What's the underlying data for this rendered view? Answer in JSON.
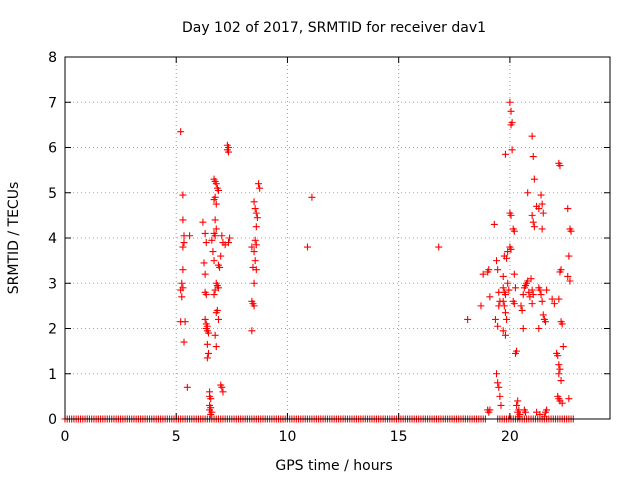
{
  "chart_data": {
    "type": "scatter",
    "title": "Day 102 of 2017, SRMTID for receiver dav1",
    "xlabel": "GPS time / hours",
    "ylabel": "SRMTID / TECUs",
    "xlim": [
      0,
      24.5
    ],
    "ylim": [
      0,
      8
    ],
    "xticks": [
      0,
      5,
      10,
      15,
      20
    ],
    "yticks": [
      0,
      1,
      2,
      3,
      4,
      5,
      6,
      7,
      8
    ],
    "grid": true,
    "marker": "plus",
    "color": "#ff0000",
    "series": [
      {
        "name": "SRMTID",
        "points": [
          [
            5.2,
            6.35
          ],
          [
            5.3,
            4.95
          ],
          [
            5.3,
            4.4
          ],
          [
            5.35,
            4.05
          ],
          [
            5.35,
            3.9
          ],
          [
            5.3,
            3.8
          ],
          [
            5.3,
            3.3
          ],
          [
            5.25,
            3.0
          ],
          [
            5.3,
            2.9
          ],
          [
            5.2,
            2.85
          ],
          [
            5.25,
            2.7
          ],
          [
            5.2,
            2.15
          ],
          [
            5.4,
            2.15
          ],
          [
            5.35,
            1.7
          ],
          [
            5.5,
            0.7
          ],
          [
            5.6,
            4.05
          ],
          [
            6.2,
            4.35
          ],
          [
            6.3,
            4.1
          ],
          [
            6.35,
            3.9
          ],
          [
            6.25,
            3.45
          ],
          [
            6.3,
            3.2
          ],
          [
            6.3,
            2.8
          ],
          [
            6.35,
            2.75
          ],
          [
            6.3,
            2.2
          ],
          [
            6.35,
            2.1
          ],
          [
            6.4,
            2.05
          ],
          [
            6.35,
            2.0
          ],
          [
            6.4,
            1.95
          ],
          [
            6.45,
            1.9
          ],
          [
            6.4,
            1.65
          ],
          [
            6.45,
            1.45
          ],
          [
            6.4,
            1.35
          ],
          [
            6.5,
            0.6
          ],
          [
            6.5,
            0.5
          ],
          [
            6.55,
            0.45
          ],
          [
            6.5,
            0.3
          ],
          [
            6.55,
            0.25
          ],
          [
            6.5,
            0.2
          ],
          [
            6.6,
            0.15
          ],
          [
            6.55,
            0.1
          ],
          [
            6.7,
            5.3
          ],
          [
            6.75,
            5.25
          ],
          [
            6.8,
            5.2
          ],
          [
            6.85,
            5.1
          ],
          [
            6.9,
            5.05
          ],
          [
            6.75,
            4.9
          ],
          [
            6.7,
            4.85
          ],
          [
            6.8,
            4.75
          ],
          [
            6.75,
            4.4
          ],
          [
            6.8,
            4.2
          ],
          [
            6.7,
            4.1
          ],
          [
            6.75,
            4.05
          ],
          [
            6.6,
            3.95
          ],
          [
            6.65,
            3.7
          ],
          [
            6.7,
            3.5
          ],
          [
            6.9,
            3.4
          ],
          [
            6.95,
            3.35
          ],
          [
            6.8,
            3.0
          ],
          [
            6.85,
            2.95
          ],
          [
            6.9,
            2.9
          ],
          [
            6.75,
            2.85
          ],
          [
            6.7,
            2.75
          ],
          [
            6.85,
            2.4
          ],
          [
            6.8,
            2.35
          ],
          [
            6.9,
            2.2
          ],
          [
            6.75,
            1.85
          ],
          [
            6.8,
            1.6
          ],
          [
            7.0,
            0.75
          ],
          [
            7.05,
            0.7
          ],
          [
            7.1,
            0.6
          ],
          [
            7.05,
            4.05
          ],
          [
            7.1,
            3.9
          ],
          [
            7.2,
            3.85
          ],
          [
            7.0,
            3.6
          ],
          [
            7.3,
            6.05
          ],
          [
            7.35,
            6.0
          ],
          [
            7.3,
            5.95
          ],
          [
            7.35,
            5.9
          ],
          [
            7.4,
            4.0
          ],
          [
            7.35,
            3.9
          ],
          [
            8.4,
            3.8
          ],
          [
            8.5,
            4.8
          ],
          [
            8.55,
            4.65
          ],
          [
            8.6,
            4.55
          ],
          [
            8.65,
            4.45
          ],
          [
            8.6,
            4.25
          ],
          [
            8.55,
            3.95
          ],
          [
            8.6,
            3.85
          ],
          [
            8.5,
            3.7
          ],
          [
            8.55,
            3.5
          ],
          [
            8.45,
            3.35
          ],
          [
            8.6,
            3.3
          ],
          [
            8.5,
            3.0
          ],
          [
            8.4,
            2.6
          ],
          [
            8.45,
            2.55
          ],
          [
            8.5,
            2.5
          ],
          [
            8.4,
            1.95
          ],
          [
            8.7,
            5.2
          ],
          [
            8.75,
            5.1
          ],
          [
            10.9,
            3.8
          ],
          [
            11.1,
            4.9
          ],
          [
            16.8,
            3.8
          ],
          [
            18.1,
            2.2
          ],
          [
            18.7,
            2.5
          ],
          [
            18.8,
            3.2
          ],
          [
            19.0,
            3.25
          ],
          [
            19.05,
            3.3
          ],
          [
            19.1,
            2.7
          ],
          [
            19.0,
            0.2
          ],
          [
            19.05,
            0.15
          ],
          [
            19.1,
            0.2
          ],
          [
            19.3,
            4.3
          ],
          [
            19.4,
            3.5
          ],
          [
            19.45,
            3.3
          ],
          [
            19.5,
            2.8
          ],
          [
            19.55,
            2.6
          ],
          [
            19.5,
            2.5
          ],
          [
            19.35,
            2.2
          ],
          [
            19.45,
            2.05
          ],
          [
            19.4,
            1.0
          ],
          [
            19.45,
            0.8
          ],
          [
            19.5,
            0.7
          ],
          [
            19.55,
            0.5
          ],
          [
            19.6,
            0.3
          ],
          [
            19.7,
            2.9
          ],
          [
            19.75,
            2.8
          ],
          [
            19.8,
            2.75
          ],
          [
            19.7,
            2.6
          ],
          [
            19.75,
            2.5
          ],
          [
            19.8,
            2.35
          ],
          [
            19.85,
            2.2
          ],
          [
            19.7,
            1.95
          ],
          [
            19.8,
            1.85
          ],
          [
            19.75,
            3.6
          ],
          [
            19.85,
            3.55
          ],
          [
            19.9,
            3.7
          ],
          [
            19.7,
            3.15
          ],
          [
            19.9,
            3.0
          ],
          [
            19.95,
            2.85
          ],
          [
            19.8,
            5.85
          ],
          [
            20.0,
            7.0
          ],
          [
            20.05,
            6.8
          ],
          [
            20.1,
            6.55
          ],
          [
            20.05,
            6.5
          ],
          [
            20.1,
            5.95
          ],
          [
            20.0,
            4.55
          ],
          [
            20.05,
            4.5
          ],
          [
            20.15,
            4.2
          ],
          [
            20.2,
            4.15
          ],
          [
            20.0,
            3.8
          ],
          [
            20.05,
            3.75
          ],
          [
            20.2,
            3.2
          ],
          [
            20.25,
            2.9
          ],
          [
            20.15,
            2.6
          ],
          [
            20.2,
            2.55
          ],
          [
            20.3,
            1.5
          ],
          [
            20.25,
            1.45
          ],
          [
            20.35,
            0.4
          ],
          [
            20.3,
            0.3
          ],
          [
            20.4,
            0.2
          ],
          [
            20.35,
            0.15
          ],
          [
            20.45,
            0.1
          ],
          [
            20.4,
            0.05
          ],
          [
            20.5,
            2.5
          ],
          [
            20.55,
            2.4
          ],
          [
            20.6,
            2.75
          ],
          [
            20.65,
            2.9
          ],
          [
            20.7,
            2.95
          ],
          [
            20.75,
            3.0
          ],
          [
            20.8,
            3.05
          ],
          [
            20.85,
            2.8
          ],
          [
            20.9,
            2.7
          ],
          [
            20.6,
            2.0
          ],
          [
            20.65,
            0.2
          ],
          [
            20.7,
            0.15
          ],
          [
            20.95,
            3.1
          ],
          [
            21.0,
            2.85
          ],
          [
            21.05,
            2.75
          ],
          [
            21.0,
            2.55
          ],
          [
            20.8,
            5.0
          ],
          [
            21.0,
            6.25
          ],
          [
            21.05,
            5.8
          ],
          [
            21.1,
            5.3
          ],
          [
            21.0,
            4.5
          ],
          [
            21.05,
            4.35
          ],
          [
            21.1,
            4.25
          ],
          [
            21.2,
            4.7
          ],
          [
            21.3,
            4.65
          ],
          [
            21.4,
            4.95
          ],
          [
            21.45,
            4.75
          ],
          [
            21.5,
            4.55
          ],
          [
            21.45,
            4.2
          ],
          [
            21.3,
            2.9
          ],
          [
            21.35,
            2.85
          ],
          [
            21.4,
            2.75
          ],
          [
            21.45,
            2.6
          ],
          [
            21.5,
            2.3
          ],
          [
            21.55,
            2.2
          ],
          [
            21.6,
            2.15
          ],
          [
            21.65,
            2.85
          ],
          [
            21.3,
            2.0
          ],
          [
            21.2,
            0.15
          ],
          [
            21.35,
            0.1
          ],
          [
            21.55,
            0.05
          ],
          [
            21.6,
            0.15
          ],
          [
            21.65,
            0.2
          ],
          [
            21.9,
            2.65
          ],
          [
            22.0,
            2.55
          ],
          [
            22.1,
            1.45
          ],
          [
            22.15,
            1.4
          ],
          [
            22.2,
            1.2
          ],
          [
            22.25,
            1.1
          ],
          [
            22.2,
            1.0
          ],
          [
            22.3,
            0.85
          ],
          [
            22.15,
            0.5
          ],
          [
            22.2,
            0.45
          ],
          [
            22.25,
            0.4
          ],
          [
            22.35,
            0.35
          ],
          [
            22.4,
            1.6
          ],
          [
            22.3,
            2.15
          ],
          [
            22.35,
            2.1
          ],
          [
            22.2,
            2.65
          ],
          [
            22.3,
            3.3
          ],
          [
            22.25,
            3.25
          ],
          [
            22.6,
            4.65
          ],
          [
            22.7,
            4.2
          ],
          [
            22.75,
            4.15
          ],
          [
            22.65,
            3.6
          ],
          [
            22.6,
            3.15
          ],
          [
            22.7,
            3.05
          ],
          [
            22.65,
            0.45
          ],
          [
            22.2,
            5.65
          ],
          [
            22.25,
            5.6
          ]
        ],
        "baseline_zero_ranges": [
          [
            0.0,
            18.95
          ],
          [
            19.45,
            22.9
          ]
        ]
      }
    ]
  }
}
